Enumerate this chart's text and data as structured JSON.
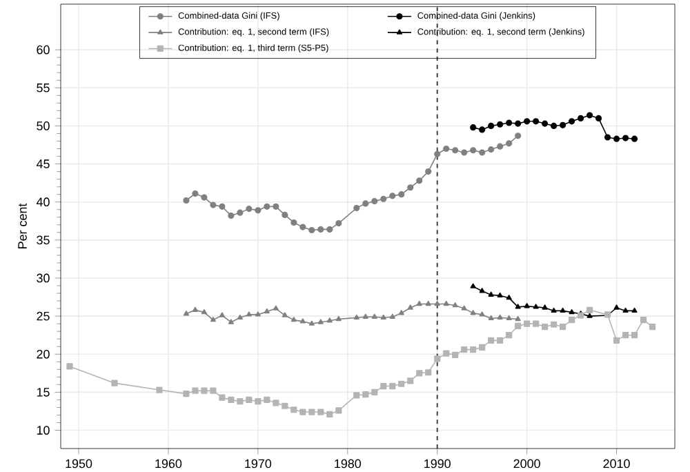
{
  "chart_data": {
    "type": "line",
    "ylabel": "Per cent",
    "xlim": [
      1948,
      2016.5
    ],
    "ylim": [
      7.6,
      66
    ],
    "xticks": [
      1950,
      1960,
      1970,
      1980,
      1990,
      2000,
      2010
    ],
    "yticks": [
      10,
      15,
      20,
      25,
      30,
      35,
      40,
      45,
      50,
      55,
      60
    ],
    "grid": true,
    "legend": "top",
    "ref_lines": [
      {
        "axis": "x",
        "value": 1990,
        "color": "#404040",
        "line_style": "dashed"
      }
    ],
    "series": [
      {
        "name": "Combined-data Gini (IFS)",
        "color": "#808080",
        "marker": "circle",
        "x": [
          1962,
          1963,
          1964,
          1965,
          1966,
          1967,
          1968,
          1969,
          1970,
          1971,
          1972,
          1973,
          1974,
          1975,
          1976,
          1977,
          1978,
          1979,
          1981,
          1982,
          1983,
          1984,
          1985,
          1986,
          1987,
          1988,
          1989,
          1990,
          1991,
          1992,
          1993,
          1994,
          1995,
          1996,
          1997,
          1998,
          1999
        ],
        "values": [
          40.2,
          41.1,
          40.6,
          39.6,
          39.4,
          38.2,
          38.6,
          39.1,
          38.9,
          39.4,
          39.4,
          38.3,
          37.3,
          36.7,
          36.3,
          36.4,
          36.4,
          37.2,
          39.2,
          39.8,
          40.1,
          40.4,
          40.8,
          41.0,
          41.9,
          42.8,
          44.0,
          46.3,
          47.0,
          46.8,
          46.5,
          46.8,
          46.5,
          46.9,
          47.3,
          47.7,
          48.7
        ]
      },
      {
        "name": "Combined-data Gini (Jenkins)",
        "color": "#000000",
        "marker": "circle",
        "x": [
          1994,
          1995,
          1996,
          1997,
          1998,
          1999,
          2000,
          2001,
          2002,
          2003,
          2004,
          2005,
          2006,
          2007,
          2008,
          2009,
          2010,
          2011,
          2012
        ],
        "values": [
          49.8,
          49.5,
          50.0,
          50.2,
          50.4,
          50.3,
          50.6,
          50.6,
          50.3,
          50.0,
          50.1,
          50.6,
          51.0,
          51.4,
          51.0,
          48.5,
          48.3,
          48.4,
          48.3
        ]
      },
      {
        "name": "Contribution: eq. 1, second term (IFS)",
        "color": "#808080",
        "marker": "triangle",
        "x": [
          1962,
          1963,
          1964,
          1965,
          1966,
          1967,
          1968,
          1969,
          1970,
          1971,
          1972,
          1973,
          1974,
          1975,
          1976,
          1977,
          1978,
          1979,
          1981,
          1982,
          1983,
          1984,
          1985,
          1986,
          1987,
          1988,
          1989,
          1990,
          1991,
          1992,
          1993,
          1994,
          1995,
          1996,
          1997,
          1998,
          1999
        ],
        "values": [
          25.3,
          25.8,
          25.5,
          24.5,
          25.1,
          24.2,
          24.8,
          25.2,
          25.2,
          25.6,
          26.0,
          25.1,
          24.5,
          24.3,
          24.0,
          24.2,
          24.4,
          24.6,
          24.8,
          24.9,
          24.9,
          24.8,
          24.9,
          25.4,
          26.1,
          26.6,
          26.6,
          26.6,
          26.6,
          26.4,
          26.0,
          25.4,
          25.2,
          24.7,
          24.8,
          24.7,
          24.6
        ]
      },
      {
        "name": "Contribution: eq. 1, second term (Jenkins)",
        "color": "#000000",
        "marker": "triangle",
        "x": [
          1994,
          1995,
          1996,
          1997,
          1998,
          1999,
          2000,
          2001,
          2002,
          2003,
          2004,
          2005,
          2006,
          2007,
          2009,
          2010,
          2011,
          2012
        ],
        "values": [
          28.9,
          28.3,
          27.8,
          27.7,
          27.4,
          26.2,
          26.3,
          26.2,
          26.1,
          25.7,
          25.7,
          25.5,
          25.3,
          25.0,
          25.1,
          26.1,
          25.7,
          25.7
        ]
      },
      {
        "name": "Contribution: eq. 1, third term (S5-P5)",
        "color": "#b4b4b4",
        "marker": "square",
        "x": [
          1949,
          1954,
          1959,
          1962,
          1963,
          1964,
          1965,
          1966,
          1967,
          1968,
          1969,
          1970,
          1971,
          1972,
          1973,
          1974,
          1975,
          1976,
          1977,
          1978,
          1979,
          1981,
          1982,
          1983,
          1984,
          1985,
          1986,
          1987,
          1988,
          1989,
          1990,
          1991,
          1992,
          1993,
          1994,
          1995,
          1996,
          1997,
          1998,
          1999,
          2000,
          2001,
          2002,
          2003,
          2004,
          2005,
          2006,
          2007,
          2009,
          2010,
          2011,
          2012,
          2013,
          2014
        ],
        "values": [
          18.4,
          16.2,
          15.3,
          14.8,
          15.2,
          15.2,
          15.2,
          14.3,
          14.0,
          13.8,
          14.0,
          13.8,
          14.0,
          13.6,
          13.2,
          12.7,
          12.4,
          12.4,
          12.4,
          12.1,
          12.6,
          14.6,
          14.7,
          15.0,
          15.8,
          15.8,
          16.1,
          16.5,
          17.5,
          17.6,
          19.4,
          20.1,
          19.9,
          20.6,
          20.6,
          20.9,
          21.8,
          21.8,
          22.5,
          23.7,
          24.0,
          24.0,
          23.6,
          23.9,
          23.6,
          24.5,
          25.1,
          25.8,
          25.2,
          21.8,
          22.5,
          22.5,
          24.5,
          23.6
        ]
      }
    ]
  }
}
